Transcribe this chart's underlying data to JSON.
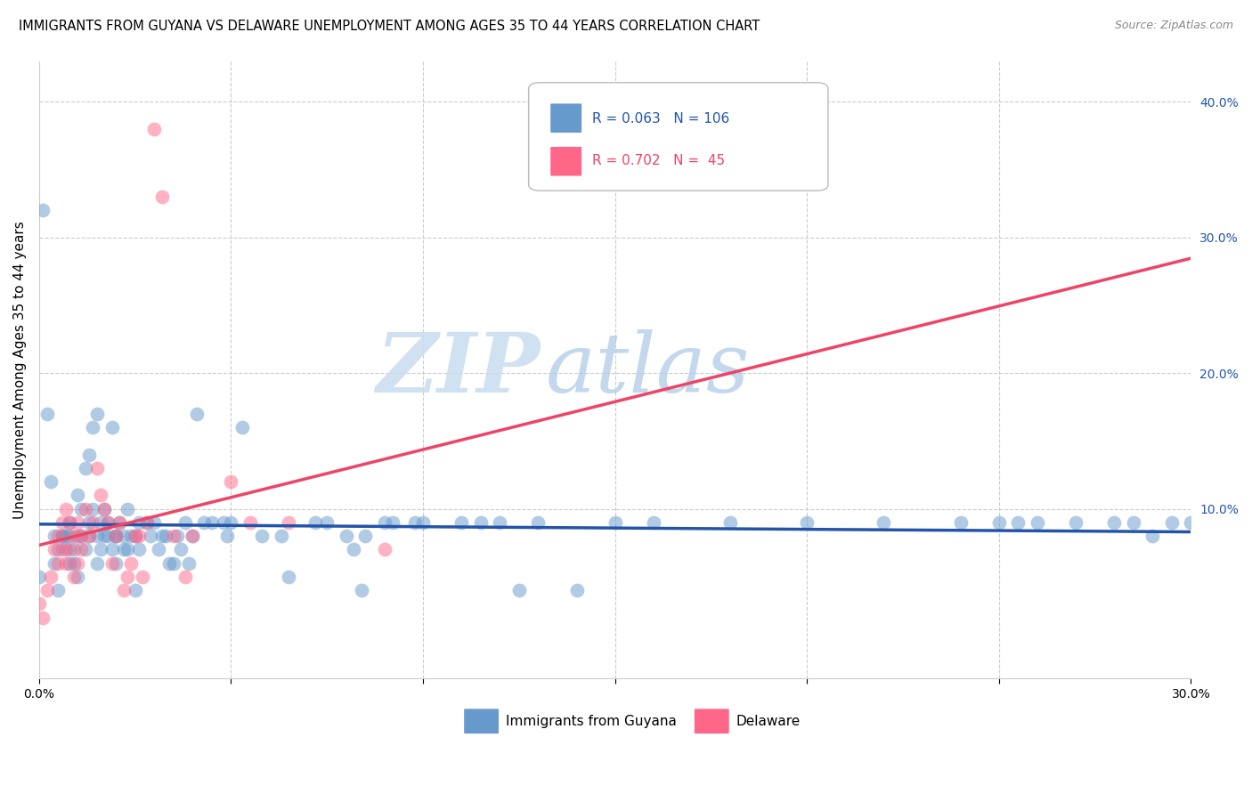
{
  "title": "IMMIGRANTS FROM GUYANA VS DELAWARE UNEMPLOYMENT AMONG AGES 35 TO 44 YEARS CORRELATION CHART",
  "source": "Source: ZipAtlas.com",
  "ylabel": "Unemployment Among Ages 35 to 44 years",
  "xlim": [
    0.0,
    0.3
  ],
  "ylim": [
    -0.025,
    0.43
  ],
  "blue_color": "#6699cc",
  "pink_color": "#ff6688",
  "line_blue_color": "#2255aa",
  "line_pink_color": "#ee4466",
  "watermark_zip": "ZIP",
  "watermark_atlas": "atlas",
  "blue_scatter_x": [
    0.001,
    0.002,
    0.003,
    0.004,
    0.004,
    0.005,
    0.005,
    0.006,
    0.007,
    0.007,
    0.008,
    0.008,
    0.008,
    0.009,
    0.009,
    0.01,
    0.01,
    0.01,
    0.011,
    0.011,
    0.012,
    0.012,
    0.013,
    0.013,
    0.013,
    0.014,
    0.014,
    0.015,
    0.015,
    0.015,
    0.016,
    0.016,
    0.017,
    0.017,
    0.018,
    0.018,
    0.019,
    0.019,
    0.02,
    0.02,
    0.021,
    0.022,
    0.022,
    0.023,
    0.023,
    0.024,
    0.025,
    0.025,
    0.026,
    0.026,
    0.028,
    0.029,
    0.03,
    0.031,
    0.032,
    0.033,
    0.034,
    0.036,
    0.037,
    0.038,
    0.039,
    0.04,
    0.041,
    0.043,
    0.045,
    0.048,
    0.049,
    0.05,
    0.053,
    0.058,
    0.063,
    0.065,
    0.072,
    0.075,
    0.08,
    0.082,
    0.085,
    0.09,
    0.092,
    0.098,
    0.1,
    0.11,
    0.115,
    0.12,
    0.13,
    0.14,
    0.15,
    0.16,
    0.18,
    0.2,
    0.22,
    0.24,
    0.25,
    0.26,
    0.27,
    0.28,
    0.29,
    0.3,
    0.0,
    0.006,
    0.02,
    0.035,
    0.084,
    0.125,
    0.255,
    0.285,
    0.295
  ],
  "blue_scatter_y": [
    0.32,
    0.17,
    0.12,
    0.08,
    0.06,
    0.04,
    0.07,
    0.08,
    0.08,
    0.07,
    0.06,
    0.08,
    0.09,
    0.07,
    0.06,
    0.05,
    0.08,
    0.11,
    0.08,
    0.1,
    0.07,
    0.13,
    0.08,
    0.09,
    0.14,
    0.1,
    0.16,
    0.06,
    0.08,
    0.17,
    0.07,
    0.09,
    0.08,
    0.1,
    0.08,
    0.09,
    0.07,
    0.16,
    0.08,
    0.06,
    0.09,
    0.07,
    0.08,
    0.07,
    0.1,
    0.08,
    0.08,
    0.04,
    0.07,
    0.09,
    0.09,
    0.08,
    0.09,
    0.07,
    0.08,
    0.08,
    0.06,
    0.08,
    0.07,
    0.09,
    0.06,
    0.08,
    0.17,
    0.09,
    0.09,
    0.09,
    0.08,
    0.09,
    0.16,
    0.08,
    0.08,
    0.05,
    0.09,
    0.09,
    0.08,
    0.07,
    0.08,
    0.09,
    0.09,
    0.09,
    0.09,
    0.09,
    0.09,
    0.09,
    0.09,
    0.04,
    0.09,
    0.09,
    0.09,
    0.09,
    0.09,
    0.09,
    0.09,
    0.09,
    0.09,
    0.09,
    0.08,
    0.09,
    0.05,
    0.08,
    0.08,
    0.06,
    0.04,
    0.04,
    0.09,
    0.09,
    0.09
  ],
  "pink_scatter_x": [
    0.0,
    0.001,
    0.002,
    0.003,
    0.004,
    0.005,
    0.005,
    0.006,
    0.006,
    0.007,
    0.007,
    0.008,
    0.008,
    0.009,
    0.009,
    0.01,
    0.01,
    0.011,
    0.011,
    0.012,
    0.013,
    0.014,
    0.015,
    0.016,
    0.017,
    0.018,
    0.019,
    0.02,
    0.021,
    0.022,
    0.023,
    0.024,
    0.025,
    0.026,
    0.027,
    0.028,
    0.03,
    0.032,
    0.035,
    0.038,
    0.04,
    0.05,
    0.055,
    0.065,
    0.09
  ],
  "pink_scatter_y": [
    0.03,
    0.02,
    0.04,
    0.05,
    0.07,
    0.06,
    0.08,
    0.07,
    0.09,
    0.06,
    0.1,
    0.07,
    0.09,
    0.05,
    0.08,
    0.06,
    0.09,
    0.07,
    0.08,
    0.1,
    0.08,
    0.09,
    0.13,
    0.11,
    0.1,
    0.09,
    0.06,
    0.08,
    0.09,
    0.04,
    0.05,
    0.06,
    0.08,
    0.08,
    0.05,
    0.09,
    0.38,
    0.33,
    0.08,
    0.05,
    0.08,
    0.12,
    0.09,
    0.09,
    0.07
  ]
}
